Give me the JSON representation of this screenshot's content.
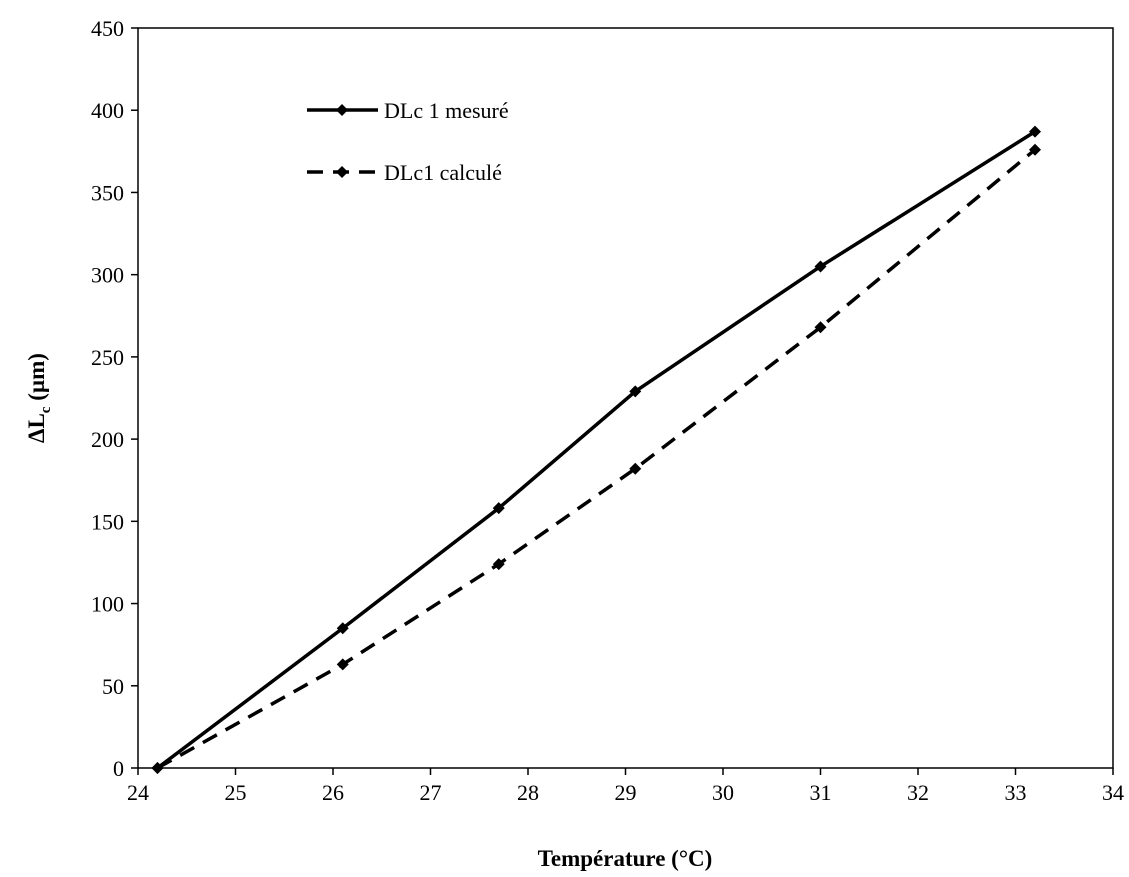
{
  "chart_data": {
    "type": "line",
    "title": "",
    "xlabel": "Température (°C)",
    "ylabel": "ΔL",
    "ylabel_sub": "c",
    "ylabel_unit": " (µm)",
    "xlim": [
      24,
      34
    ],
    "ylim": [
      0,
      450
    ],
    "xticks": [
      24,
      25,
      26,
      27,
      28,
      29,
      30,
      31,
      32,
      33,
      34
    ],
    "yticks": [
      0,
      50,
      100,
      150,
      200,
      250,
      300,
      350,
      400,
      450
    ],
    "grid": false,
    "legend_position": "top-left",
    "series": [
      {
        "name": "DLc 1 mesuré",
        "line_style": "solid",
        "color": "#000000",
        "x": [
          24.2,
          26.1,
          27.7,
          29.1,
          31.0,
          33.2
        ],
        "y": [
          0,
          85,
          158,
          229,
          305,
          387
        ]
      },
      {
        "name": "DLc1 calculé",
        "line_style": "dashed",
        "color": "#000000",
        "x": [
          24.2,
          26.1,
          27.7,
          29.1,
          31.0,
          33.2
        ],
        "y": [
          0,
          63,
          124,
          182,
          268,
          376
        ]
      }
    ]
  }
}
